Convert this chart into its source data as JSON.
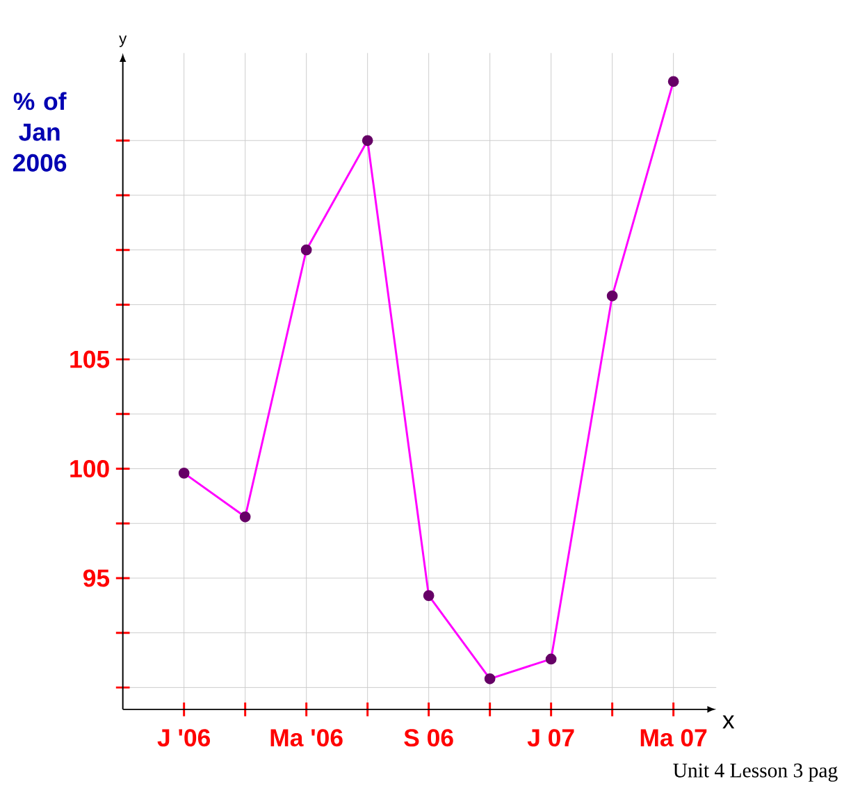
{
  "chart_data": {
    "type": "line",
    "ylabel": "% of Jan 2006",
    "xlabel": "x",
    "categories": [
      "J '06",
      null,
      "Ma '06",
      null,
      "S 06",
      null,
      "J 07",
      null,
      "Ma 07"
    ],
    "series": [
      {
        "color": "#ff00ff",
        "values": [
          99.8,
          97.8,
          110,
          115,
          94.2,
          90.4,
          91.3,
          107.9,
          117.7
        ]
      }
    ],
    "ylim": [
      89,
      119
    ],
    "yticks": [
      {
        "value": 90,
        "label": null
      },
      {
        "value": 92.5,
        "label": null
      },
      95,
      {
        "value": 97.5,
        "label": null
      },
      100,
      {
        "value": 102.5,
        "label": null
      },
      105,
      {
        "value": 107.5,
        "label": null
      },
      {
        "value": 110,
        "label": null
      },
      {
        "value": 112.5,
        "label": null
      },
      {
        "value": 115,
        "label": null
      }
    ],
    "grid": true,
    "marker": "circle",
    "line_style": "solid",
    "annotations": [
      "y",
      "Unit 4 Lesson 3 pag"
    ]
  }
}
